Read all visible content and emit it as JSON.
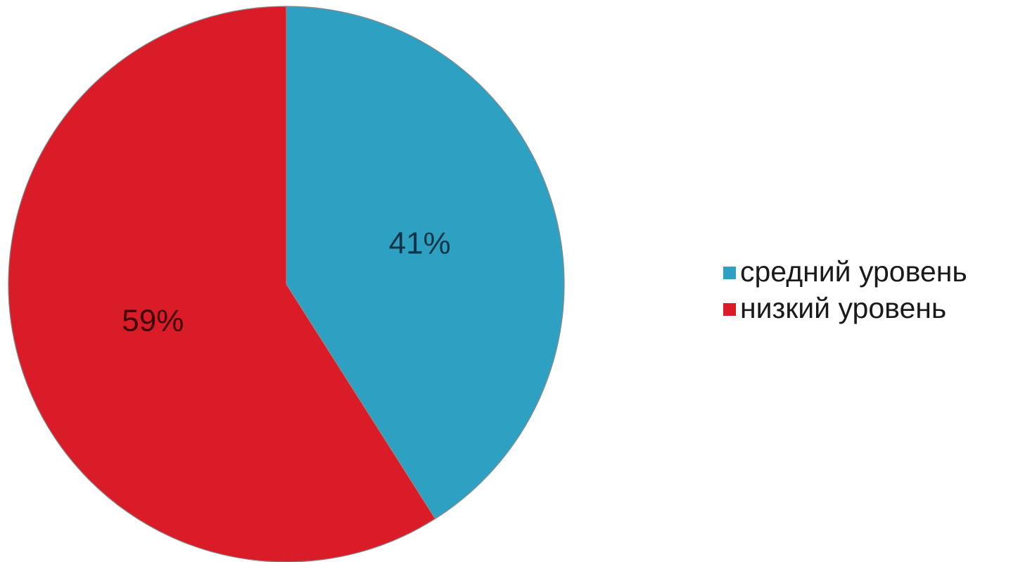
{
  "chart_data": {
    "type": "pie",
    "categories": [
      "средний уровень",
      "низкий уровень"
    ],
    "values": [
      41,
      59
    ],
    "data_labels": [
      "41%",
      "59%"
    ],
    "colors": [
      "#2ea1c2",
      "#d91c27"
    ],
    "label_colors": [
      "#0d3446",
      "#3d0508"
    ],
    "start_angle_deg": 0,
    "direction": "clockwise",
    "legend_placement": "right"
  }
}
